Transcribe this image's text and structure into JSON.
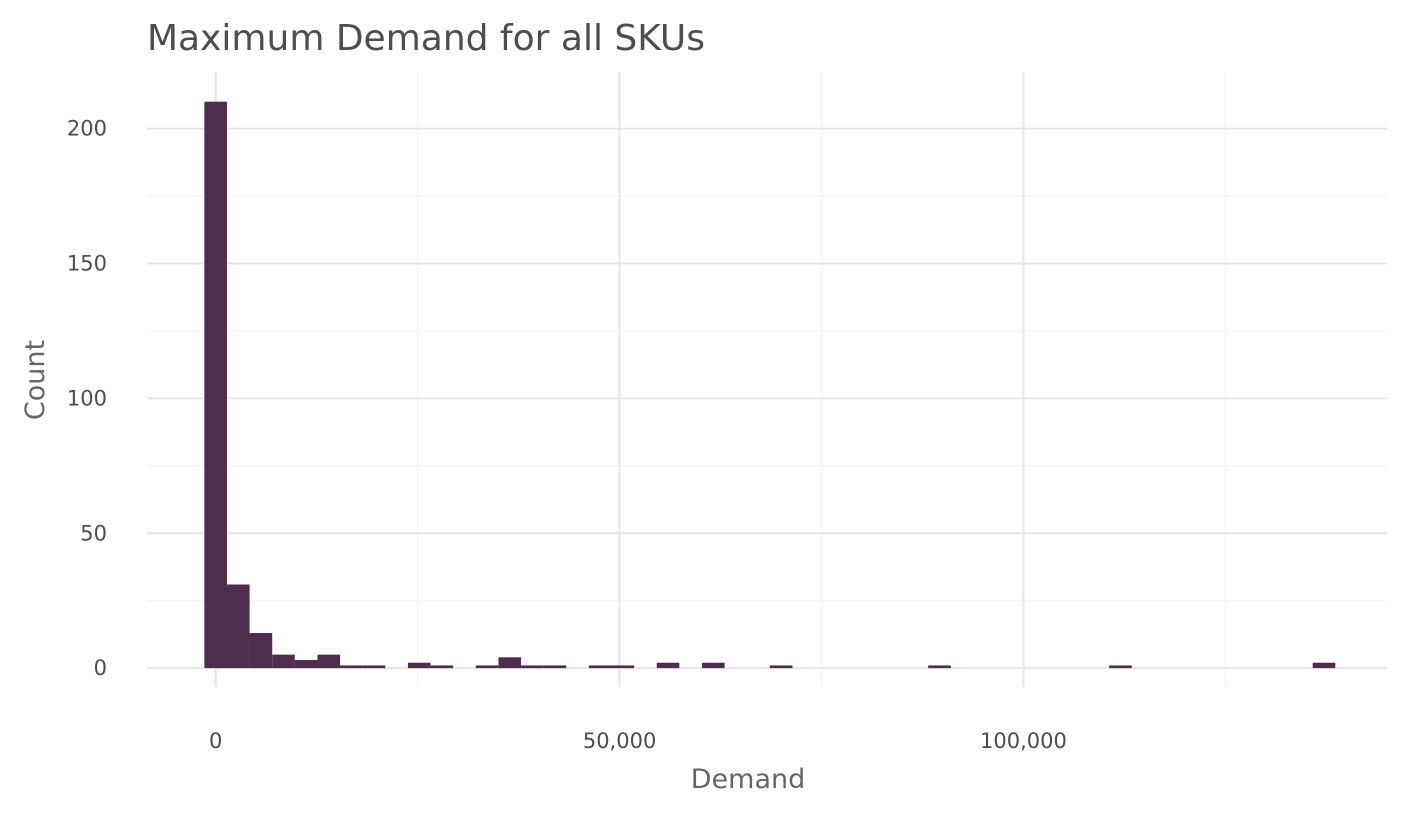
{
  "chart_data": {
    "type": "bar",
    "subtype": "histogram",
    "title": "Maximum Demand for all SKUs",
    "xlabel": "Demand",
    "ylabel": "Count",
    "xlim": [
      -8500,
      145000
    ],
    "ylim": [
      -7,
      221
    ],
    "x_ticks": [
      {
        "value": 0,
        "label": "0"
      },
      {
        "value": 50000,
        "label": "50,000"
      },
      {
        "value": 100000,
        "label": "100,000"
      }
    ],
    "y_ticks": [
      {
        "value": 0,
        "label": "0"
      },
      {
        "value": 50,
        "label": "50"
      },
      {
        "value": 100,
        "label": "100"
      },
      {
        "value": 150,
        "label": "150"
      },
      {
        "value": 200,
        "label": "200"
      }
    ],
    "x_minor_ticks": [
      25000,
      75000,
      125000
    ],
    "y_minor_ticks": [
      25,
      75,
      125,
      175
    ],
    "grid": true,
    "bar_color": "#4f2d4f",
    "bins": [
      {
        "x0": -1400,
        "x1": 1400,
        "count": 210
      },
      {
        "x0": 1400,
        "x1": 4200,
        "count": 31
      },
      {
        "x0": 4200,
        "x1": 7000,
        "count": 13
      },
      {
        "x0": 7000,
        "x1": 9800,
        "count": 5
      },
      {
        "x0": 9800,
        "x1": 12600,
        "count": 3
      },
      {
        "x0": 12600,
        "x1": 15400,
        "count": 5
      },
      {
        "x0": 15400,
        "x1": 18200,
        "count": 1
      },
      {
        "x0": 18200,
        "x1": 21000,
        "count": 1
      },
      {
        "x0": 23800,
        "x1": 26600,
        "count": 2
      },
      {
        "x0": 26600,
        "x1": 29400,
        "count": 1
      },
      {
        "x0": 32200,
        "x1": 35000,
        "count": 1
      },
      {
        "x0": 35000,
        "x1": 37800,
        "count": 4
      },
      {
        "x0": 37800,
        "x1": 40600,
        "count": 1
      },
      {
        "x0": 40600,
        "x1": 43400,
        "count": 1
      },
      {
        "x0": 46200,
        "x1": 49000,
        "count": 1
      },
      {
        "x0": 49000,
        "x1": 51800,
        "count": 1
      },
      {
        "x0": 54600,
        "x1": 57400,
        "count": 2
      },
      {
        "x0": 60200,
        "x1": 63000,
        "count": 2
      },
      {
        "x0": 68600,
        "x1": 71400,
        "count": 1
      },
      {
        "x0": 88200,
        "x1": 91000,
        "count": 1
      },
      {
        "x0": 110600,
        "x1": 113400,
        "count": 1
      },
      {
        "x0": 135800,
        "x1": 138600,
        "count": 2
      }
    ]
  }
}
